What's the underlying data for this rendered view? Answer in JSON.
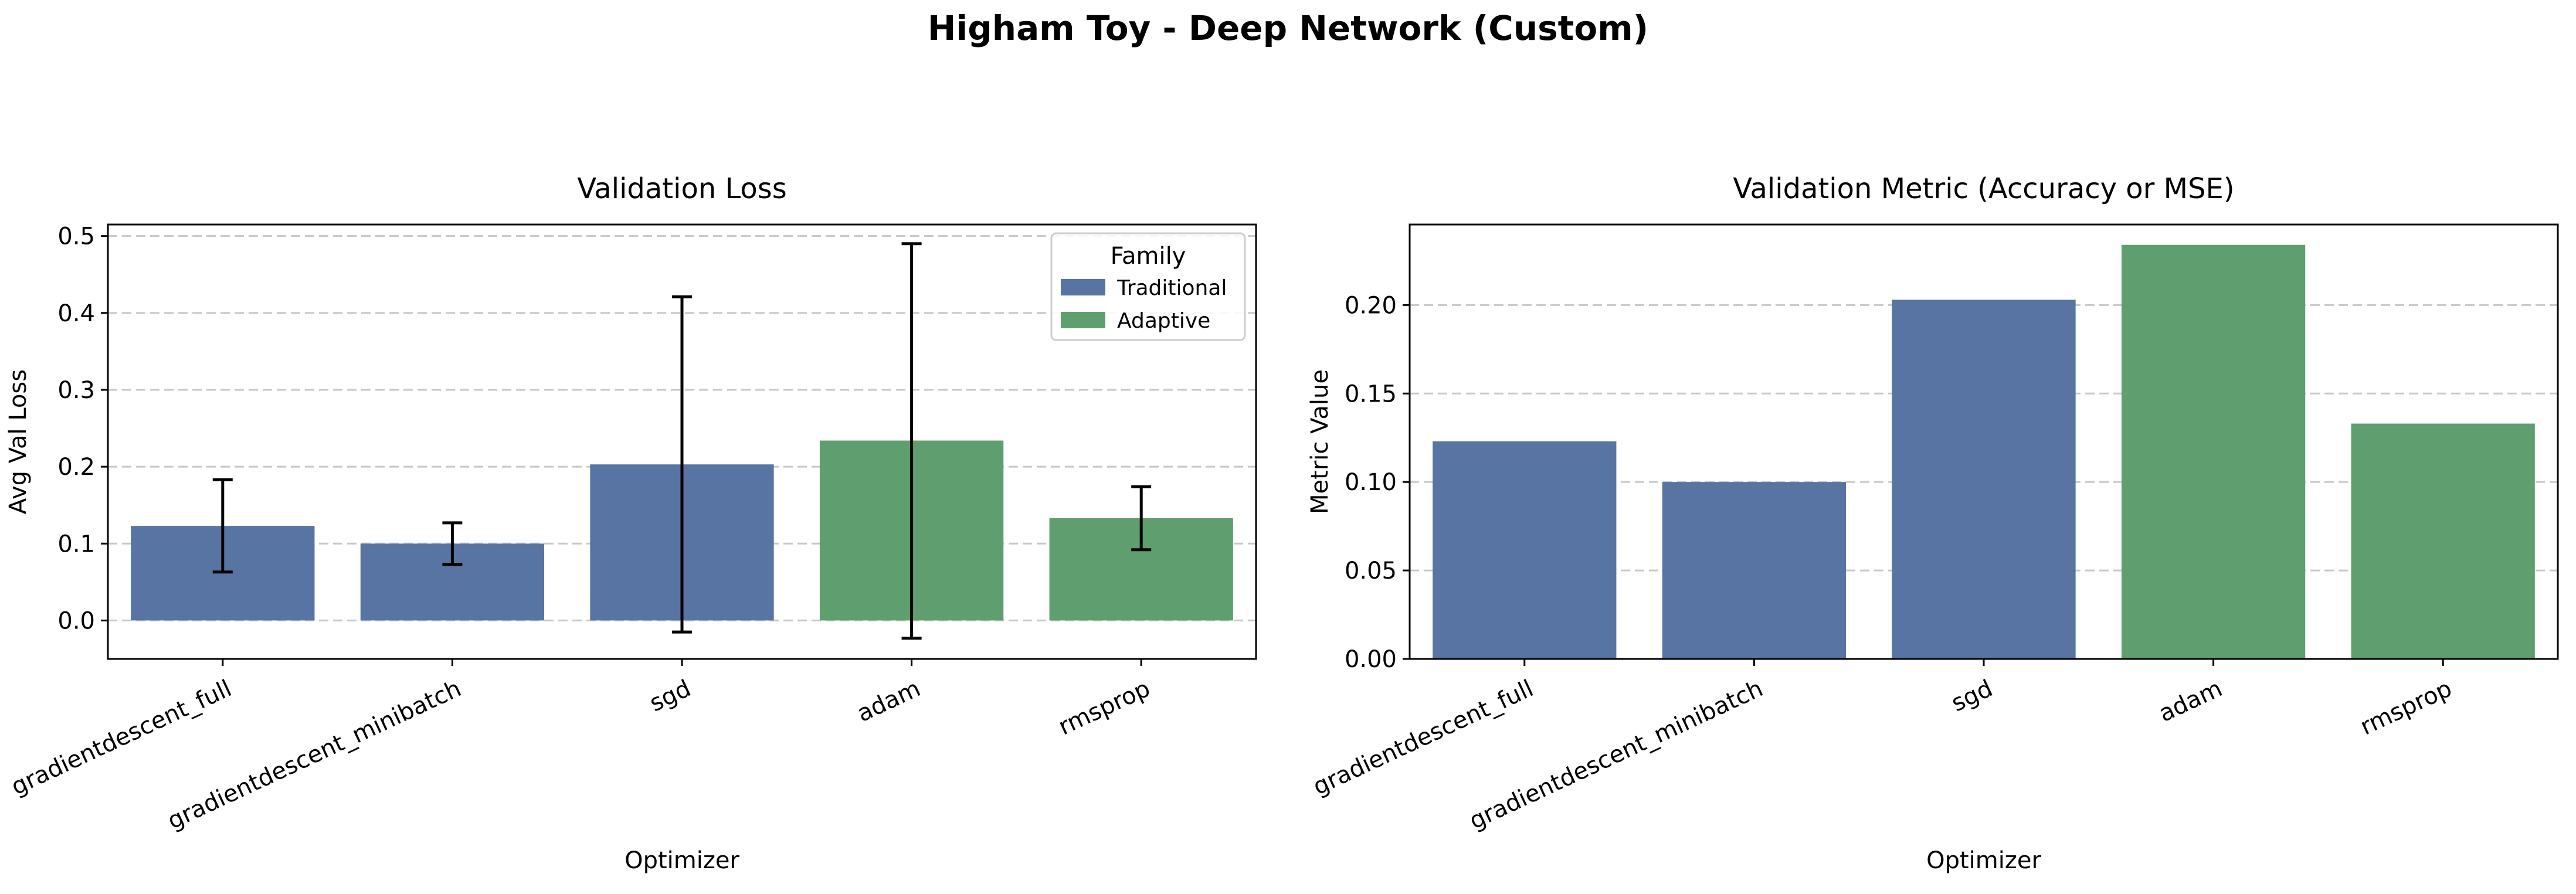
{
  "figure": {
    "title": "Higham Toy - Deep Network (Custom)"
  },
  "colors": {
    "traditional": "#5874a3",
    "adaptive": "#5f9e6e",
    "errorbar": "#000000",
    "grid": "#c8c8c8"
  },
  "chart_data": [
    {
      "type": "bar",
      "title": "Validation Loss",
      "xlabel": "Optimizer",
      "ylabel": "Avg Val Loss",
      "categories": [
        "gradientdescent_full",
        "gradientdescent_minibatch",
        "sgd",
        "adam",
        "rmsprop"
      ],
      "values": [
        0.123,
        0.1,
        0.203,
        0.234,
        0.133
      ],
      "error_low": [
        0.063,
        0.073,
        -0.015,
        -0.023,
        0.092
      ],
      "error_high": [
        0.183,
        0.127,
        0.421,
        0.49,
        0.174
      ],
      "family": [
        "Traditional",
        "Traditional",
        "Traditional",
        "Adaptive",
        "Adaptive"
      ],
      "ylim": [
        -0.05,
        0.515
      ],
      "yticks": [
        0.0,
        0.1,
        0.2,
        0.3,
        0.4,
        0.5
      ],
      "ytick_labels": [
        "0.0",
        "0.1",
        "0.2",
        "0.3",
        "0.4",
        "0.5"
      ],
      "grid": "y-dashed",
      "legend": {
        "title": "Family",
        "placement": "top-right",
        "entries": [
          "Traditional",
          "Adaptive"
        ]
      }
    },
    {
      "type": "bar",
      "title": "Validation Metric (Accuracy or MSE)",
      "xlabel": "Optimizer",
      "ylabel": "Metric Value",
      "categories": [
        "gradientdescent_full",
        "gradientdescent_minibatch",
        "sgd",
        "adam",
        "rmsprop"
      ],
      "values": [
        0.123,
        0.1,
        0.203,
        0.234,
        0.133
      ],
      "family": [
        "Traditional",
        "Traditional",
        "Traditional",
        "Adaptive",
        "Adaptive"
      ],
      "ylim": [
        0.0,
        0.2455
      ],
      "yticks": [
        0.0,
        0.05,
        0.1,
        0.15,
        0.2
      ],
      "ytick_labels": [
        "0.00",
        "0.05",
        "0.10",
        "0.15",
        "0.20"
      ],
      "grid": "y-dashed"
    }
  ]
}
